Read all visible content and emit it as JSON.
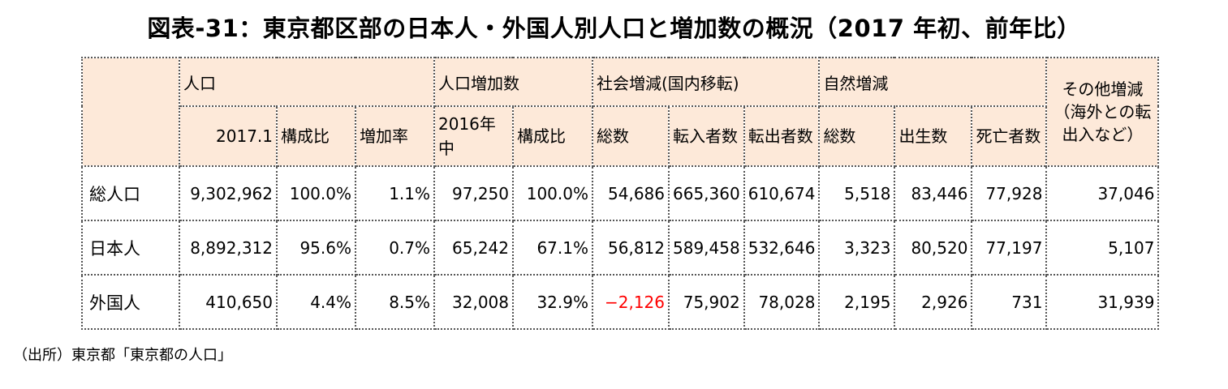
{
  "title": "図表-31：東京都区部の日本人・外国人別人口と増加数の概況（2017 年初、前年比）",
  "header": {
    "population": "人口",
    "increase": "人口増加数",
    "social": "社会増減(国内移転)",
    "natural": "自然増減",
    "other": "その他増減（海外との転出入など）",
    "sub": [
      "2017.1",
      "構成比",
      "増加率",
      "2016年中",
      "構成比",
      "総数",
      "転入者数",
      "転出者数",
      "総数",
      "出生数",
      "死亡者数"
    ]
  },
  "rows": [
    {
      "label": "総人口",
      "values": [
        "9,302,962",
        "100.0%",
        "1.1%",
        "97,250",
        "100.0%",
        "54,686",
        "665,360",
        "610,674",
        "5,518",
        "83,446",
        "77,928",
        "37,046"
      ]
    },
    {
      "label": "日本人",
      "values": [
        "8,892,312",
        "95.6%",
        "0.7%",
        "65,242",
        "67.1%",
        "56,812",
        "589,458",
        "532,646",
        "3,323",
        "80,520",
        "77,197",
        "5,107"
      ]
    },
    {
      "label": "外国人",
      "values": [
        "410,650",
        "4.4%",
        "8.5%",
        "32,008",
        "32.9%",
        "−2,126",
        "75,902",
        "78,028",
        "2,195",
        "2,926",
        "731",
        "31,939"
      ]
    }
  ],
  "negative_color": "#ff0000",
  "header_background": "#fde9d9",
  "source": "（出所）東京都「東京都の人口」"
}
